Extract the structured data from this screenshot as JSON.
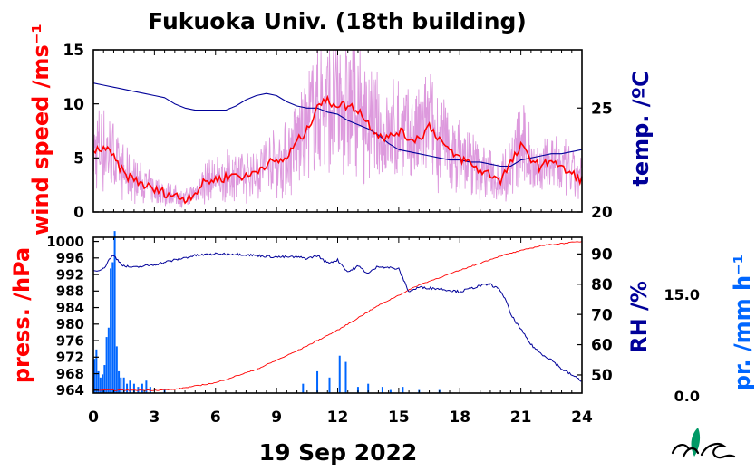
{
  "title": "Fukuoka Univ. (18th building)",
  "date_label": "19 Sep 2022",
  "colors": {
    "wind": "#ff0000",
    "wind_raw": "#dd99dd",
    "temp": "#000099",
    "pressure": "#ff0000",
    "rh": "#000099",
    "precip": "#0066ff",
    "logo": "#009966"
  },
  "chart_data": [
    {
      "type": "line",
      "panel": "top",
      "xlim": [
        0,
        24
      ],
      "x_ticks": [
        0,
        3,
        6,
        9,
        12,
        15,
        18,
        21,
        24
      ],
      "left_axis": {
        "label": "wind speed /ms⁻¹",
        "ylim": [
          0,
          15
        ],
        "ticks": [
          "0",
          "5",
          "10",
          "15"
        ],
        "tick_values": [
          0,
          5,
          10,
          15
        ]
      },
      "right_axis": {
        "label": "temp. /ºC",
        "ylim": [
          20,
          27.8
        ],
        "ticks": [
          "20",
          "25"
        ],
        "tick_values": [
          20,
          25
        ]
      },
      "series": [
        {
          "axis": "left",
          "color": "wind",
          "role": "wind_mean",
          "x": [
            0,
            0.5,
            1,
            1.5,
            2,
            2.5,
            3,
            3.5,
            4,
            4.5,
            5,
            5.5,
            6,
            6.5,
            7,
            7.5,
            8,
            8.5,
            9,
            9.5,
            10,
            10.5,
            11,
            11.5,
            12,
            12.5,
            13,
            13.5,
            14,
            14.5,
            15,
            15.5,
            16,
            16.5,
            17,
            17.5,
            18,
            18.5,
            19,
            19.5,
            20,
            20.5,
            21,
            21.5,
            22,
            22.5,
            23,
            23.5,
            24
          ],
          "values": [
            5.5,
            6.0,
            5.0,
            3.5,
            3.0,
            2.5,
            2.0,
            1.8,
            1.5,
            1.2,
            1.8,
            2.8,
            3.0,
            3.2,
            3.5,
            3.2,
            3.8,
            4.5,
            4.6,
            5.0,
            6.5,
            7.5,
            10.0,
            10.2,
            10.0,
            9.8,
            9.5,
            8.2,
            7.2,
            6.8,
            7.5,
            6.8,
            6.8,
            8.0,
            6.8,
            5.5,
            5.0,
            4.5,
            3.8,
            3.5,
            3.0,
            4.5,
            6.0,
            5.0,
            4.0,
            5.0,
            4.0,
            3.5,
            3.0
          ]
        },
        {
          "axis": "right",
          "color": "temp",
          "role": "temperature",
          "x": [
            0,
            0.5,
            1,
            1.5,
            2,
            2.5,
            3,
            3.5,
            4,
            4.5,
            5,
            5.5,
            6,
            6.5,
            7,
            7.5,
            8,
            8.5,
            9,
            9.5,
            10,
            10.5,
            11,
            11.5,
            12,
            12.5,
            13,
            13.5,
            14,
            14.5,
            15,
            15.5,
            16,
            16.5,
            17,
            17.5,
            18,
            18.5,
            19,
            19.5,
            20,
            20.5,
            21,
            21.5,
            22,
            22.5,
            23,
            23.5,
            24
          ],
          "values": [
            26.2,
            26.1,
            26.0,
            25.9,
            25.8,
            25.7,
            25.6,
            25.5,
            25.2,
            25.0,
            24.9,
            24.9,
            24.9,
            24.9,
            25.1,
            25.4,
            25.6,
            25.7,
            25.6,
            25.3,
            25.1,
            25.0,
            25.0,
            24.8,
            24.7,
            24.4,
            24.2,
            24.0,
            23.7,
            23.3,
            23.0,
            22.9,
            22.8,
            22.7,
            22.6,
            22.5,
            22.5,
            22.4,
            22.4,
            22.3,
            22.2,
            22.2,
            22.5,
            22.6,
            22.7,
            22.8,
            22.8,
            22.9,
            23.0
          ]
        }
      ]
    },
    {
      "type": "line",
      "panel": "bottom",
      "xlabel": "19 Sep 2022",
      "xlim": [
        0,
        24
      ],
      "x_ticks": [
        0,
        3,
        6,
        9,
        12,
        15,
        18,
        21,
        24
      ],
      "x_tick_labels": [
        "0",
        "3",
        "6",
        "9",
        "12",
        "15",
        "18",
        "21",
        "24"
      ],
      "left_axis": {
        "label": "press. /hPa",
        "ylim": [
          963.3,
          1001
        ],
        "ticks": [
          "1000",
          "996",
          "992",
          "988",
          "984",
          "980",
          "976",
          "972",
          "968",
          "964"
        ],
        "tick_values": [
          1000,
          996,
          992,
          988,
          984,
          980,
          976,
          972,
          968,
          964
        ]
      },
      "right_axis": {
        "label": "RH /%",
        "ylim": [
          44,
          95.5
        ],
        "ticks": [
          "90",
          "80",
          "70",
          "60",
          "50"
        ],
        "tick_values": [
          90,
          80,
          70,
          60,
          50
        ]
      },
      "precip_axis": {
        "label": "pr. /mm h⁻¹",
        "ticks": [
          "15.0",
          "0.0"
        ],
        "tick_values": [
          15,
          0
        ],
        "ylim": [
          0,
          25
        ]
      },
      "series": [
        {
          "axis": "left",
          "color": "pressure",
          "role": "pressure",
          "x": [
            0,
            3,
            4,
            6,
            8,
            10,
            12,
            14,
            15,
            16,
            18,
            20,
            22,
            24
          ],
          "values": [
            964.0,
            964.0,
            964.2,
            965.8,
            969.0,
            973.5,
            978.5,
            984.5,
            987.0,
            989.5,
            993.0,
            996.5,
            999.0,
            1000.0
          ]
        },
        {
          "axis": "right",
          "color": "rh",
          "role": "relative_humidity",
          "x": [
            0,
            0.5,
            0.8,
            1,
            1.2,
            1.5,
            2,
            3,
            4,
            5,
            6,
            7,
            8,
            9,
            10,
            10.5,
            11,
            11.5,
            12,
            12.5,
            13,
            13.5,
            14,
            14.5,
            15,
            15.5,
            16,
            17,
            18,
            19,
            19.5,
            20,
            20.3,
            20.5,
            21,
            21.5,
            22,
            22.5,
            23,
            23.5,
            24
          ],
          "values": [
            84.5,
            85.0,
            88.5,
            89.5,
            88.0,
            86.0,
            85.5,
            86.5,
            88.0,
            89.5,
            90.0,
            90.0,
            89.5,
            89.0,
            89.0,
            88.5,
            89.5,
            87.0,
            88.0,
            84.0,
            86.0,
            83.5,
            86.0,
            85.5,
            85.0,
            77.5,
            79.0,
            78.5,
            77.5,
            79.5,
            80.0,
            78.0,
            74.0,
            70.0,
            65.0,
            60.0,
            57.0,
            55.0,
            52.0,
            50.0,
            48.0
          ]
        },
        {
          "axis": "precip",
          "color": "precip",
          "role": "precipitation",
          "type": "bar",
          "x": [
            0.05,
            0.15,
            0.25,
            0.35,
            0.45,
            0.55,
            0.65,
            0.75,
            0.85,
            0.95,
            1.05,
            1.15,
            1.25,
            1.35,
            1.5,
            1.65,
            1.8,
            2.0,
            2.2,
            2.4,
            2.6,
            2.8,
            3.5,
            10.3,
            11.0,
            11.6,
            12.1,
            12.4,
            13.0,
            13.5,
            14.2,
            14.6,
            15.2,
            16.0,
            17.0
          ],
          "values": [
            5.5,
            7.0,
            3.5,
            2.5,
            3.0,
            4.5,
            9.0,
            10.5,
            20.0,
            21.0,
            26.0,
            7.5,
            3.5,
            2.5,
            2.5,
            1.5,
            2.0,
            1.5,
            1.0,
            1.5,
            2.0,
            1.0,
            0.5,
            1.5,
            3.5,
            2.5,
            6.0,
            5.0,
            1.0,
            1.5,
            1.0,
            0.5,
            1.0,
            0.5,
            0.5
          ]
        }
      ]
    }
  ]
}
